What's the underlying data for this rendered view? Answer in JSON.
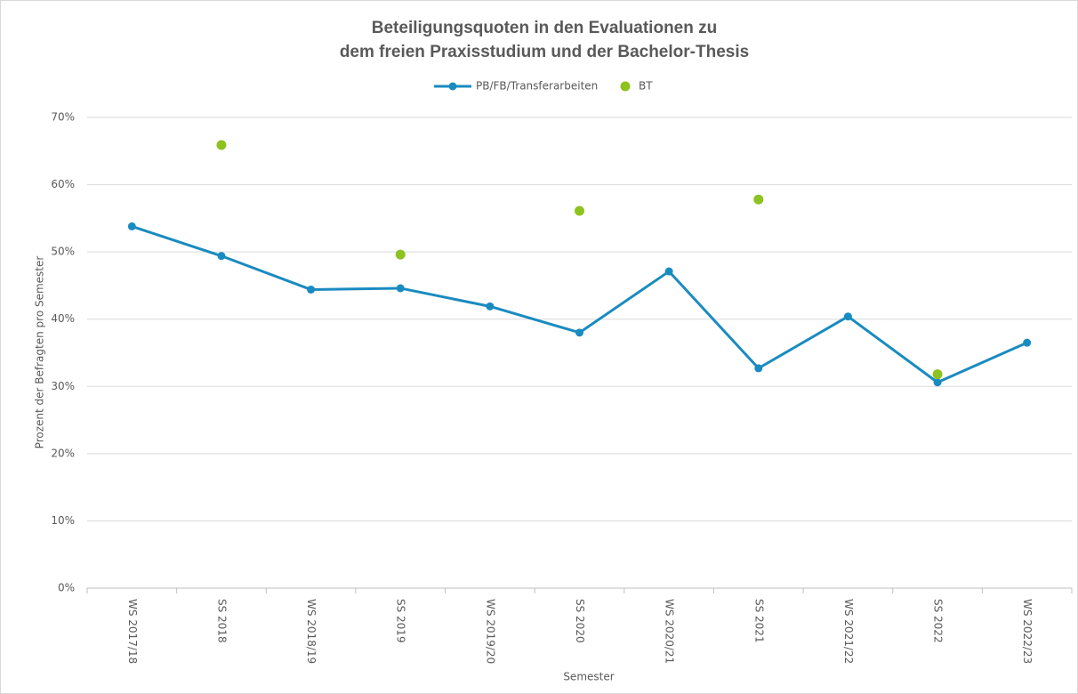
{
  "chart_data": {
    "type": "line",
    "title": [
      "Beteiligungsquoten in den Evaluationen zu",
      "dem freien Praxisstudium und der Bachelor-Thesis"
    ],
    "xlabel": "Semester",
    "ylabel": "Prozent der Befragten pro Semester",
    "categories": [
      "WS 2017/18",
      "SS 2018",
      "WS 2018/19",
      "SS 2019",
      "WS 2019/20",
      "SS 2020",
      "WS 2020/21",
      "SS 2021",
      "WS 2021/22",
      "SS 2022",
      "WS 2022/23"
    ],
    "series": [
      {
        "name": "PB/FB/Transferarbeiten",
        "color": "#1a8bc0",
        "line": true,
        "values": [
          53.8,
          49.4,
          44.4,
          44.6,
          41.9,
          38.0,
          47.1,
          32.7,
          40.4,
          30.6,
          36.5
        ]
      },
      {
        "name": "BT",
        "color": "#8dc21f",
        "line": false,
        "values": [
          null,
          65.9,
          null,
          49.6,
          null,
          56.1,
          null,
          57.8,
          null,
          31.8,
          null
        ]
      }
    ],
    "ylim": [
      0,
      70
    ],
    "yticks": [
      {
        "value": 0,
        "label": "0%"
      },
      {
        "value": 10,
        "label": "10%"
      },
      {
        "value": 20,
        "label": "20%"
      },
      {
        "value": 30,
        "label": "30%"
      },
      {
        "value": 40,
        "label": "40%"
      },
      {
        "value": 50,
        "label": "50%"
      },
      {
        "value": 60,
        "label": "60%"
      },
      {
        "value": 70,
        "label": "70%"
      }
    ],
    "grid": true,
    "legend": "top"
  }
}
